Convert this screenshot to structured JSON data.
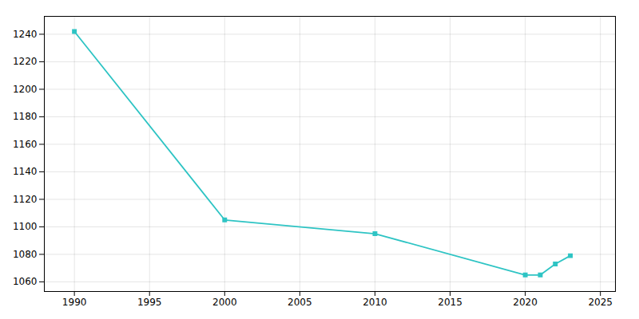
{
  "chart_data": {
    "type": "line",
    "x": [
      1990,
      2000,
      2010,
      2020,
      2021,
      2022,
      2023
    ],
    "values": [
      1242,
      1105,
      1095,
      1065,
      1065,
      1073,
      1079
    ],
    "color": "#2ec4c4",
    "marker": "square",
    "xlim": [
      1988,
      2026
    ],
    "ylim": [
      1053,
      1253
    ],
    "xticks": [
      1990,
      1995,
      2000,
      2005,
      2010,
      2015,
      2020,
      2025
    ],
    "yticks": [
      1060,
      1080,
      1100,
      1120,
      1140,
      1160,
      1180,
      1200,
      1220,
      1240
    ],
    "grid": true
  }
}
